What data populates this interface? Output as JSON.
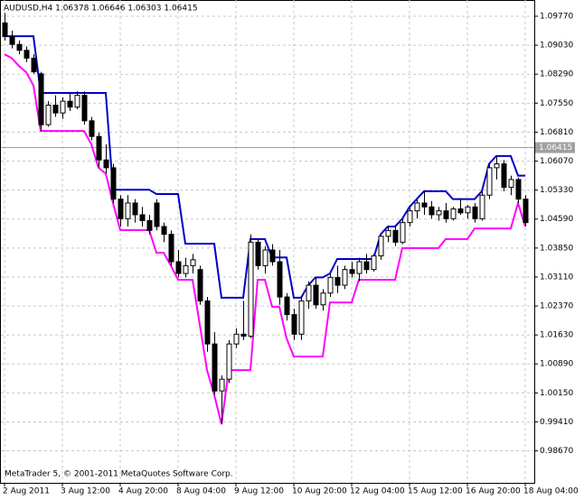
{
  "chart_data": {
    "type": "candlestick",
    "title": "AUDUSD,H4  1.06378 1.06646 1.06303 1.06415",
    "footer": "MetaTrader 5, © 2001-2011 MetaQuotes Software Corp.",
    "categories": [
      "2 Aug 2011",
      null,
      null,
      null,
      null,
      null,
      null,
      null,
      "3 Aug 12:00",
      null,
      null,
      null,
      null,
      null,
      null,
      null,
      "4 Aug 20:00",
      null,
      null,
      null,
      null,
      null,
      null,
      null,
      "8 Aug 04:00",
      null,
      null,
      null,
      null,
      null,
      null,
      null,
      "9 Aug 12:00",
      null,
      null,
      null,
      null,
      null,
      null,
      null,
      "10 Aug 20:00",
      null,
      null,
      null,
      null,
      null,
      null,
      null,
      "12 Aug 04:00",
      null,
      null,
      null,
      null,
      null,
      null,
      null,
      "15 Aug 12:00",
      null,
      null,
      null,
      null,
      null,
      null,
      null,
      "16 Aug 20:00",
      null,
      null,
      null,
      null,
      null,
      null,
      null,
      "18 Aug 04:00"
    ],
    "open": [
      1.096,
      1.0925,
      1.0905,
      1.089,
      1.087,
      1.083,
      1.07,
      1.075,
      1.073,
      1.076,
      1.0745,
      1.0775,
      1.071,
      1.067,
      1.061,
      1.059,
      1.051,
      1.046,
      1.05,
      1.047,
      1.0455,
      1.05,
      1.044,
      1.042,
      1.035,
      1.032,
      1.034,
      1.033,
      1.025,
      1.014,
      1.002,
      1.005,
      1.014,
      1.0165,
      1.016,
      1.04,
      1.034,
      1.038,
      1.035,
      1.026,
      1.0215,
      1.0165,
      1.025,
      1.029,
      1.024,
      1.027,
      1.031,
      1.029,
      1.033,
      1.032,
      1.035,
      1.033,
      1.0365,
      1.0415,
      1.043,
      1.04,
      1.045,
      1.048,
      1.05,
      1.049,
      1.047,
      1.048,
      1.046,
      1.0485,
      1.0475,
      1.049,
      1.046,
      1.052,
      1.059,
      1.06,
      1.054,
      1.056,
      1.051
    ],
    "high": [
      1.0985,
      1.094,
      1.0915,
      1.09,
      1.088,
      1.0835,
      1.076,
      1.0775,
      1.077,
      1.078,
      1.0785,
      1.0785,
      1.072,
      1.068,
      1.065,
      1.06,
      1.052,
      1.052,
      1.051,
      1.049,
      1.047,
      1.051,
      1.045,
      1.043,
      1.038,
      1.036,
      1.037,
      1.034,
      1.026,
      1.017,
      1.006,
      1.015,
      1.018,
      1.025,
      1.042,
      1.041,
      1.039,
      1.0395,
      1.038,
      1.027,
      1.023,
      1.026,
      1.03,
      1.031,
      1.028,
      1.032,
      1.034,
      1.034,
      1.035,
      1.036,
      1.037,
      1.037,
      1.042,
      1.044,
      1.044,
      1.046,
      1.049,
      1.051,
      1.053,
      1.0505,
      1.049,
      1.05,
      1.049,
      1.051,
      1.0495,
      1.05,
      1.053,
      1.06,
      1.062,
      1.061,
      1.057,
      1.0565,
      1.052
    ],
    "low": [
      1.0915,
      1.0895,
      1.088,
      1.086,
      1.083,
      1.0685,
      1.0695,
      1.072,
      1.0715,
      1.0735,
      1.074,
      1.07,
      1.066,
      1.059,
      1.0575,
      1.05,
      1.044,
      1.044,
      1.045,
      1.044,
      1.042,
      1.043,
      1.04,
      1.034,
      1.031,
      1.031,
      1.032,
      1.024,
      1.012,
      1.001,
      0.9935,
      1.004,
      1.013,
      1.015,
      1.0155,
      1.033,
      1.032,
      1.034,
      1.024,
      1.02,
      1.015,
      1.015,
      1.023,
      1.023,
      1.0225,
      1.026,
      1.027,
      1.028,
      1.031,
      1.03,
      1.032,
      1.0325,
      1.0355,
      1.04,
      1.039,
      1.0395,
      1.044,
      1.046,
      1.047,
      1.046,
      1.0455,
      1.045,
      1.0455,
      1.047,
      1.046,
      1.045,
      1.0455,
      1.051,
      1.056,
      1.053,
      1.052,
      1.05,
      1.044
    ],
    "close": [
      1.0925,
      1.0905,
      1.089,
      1.087,
      1.0835,
      1.07,
      1.075,
      1.073,
      1.076,
      1.0745,
      1.0775,
      1.071,
      1.067,
      1.061,
      1.059,
      1.051,
      1.046,
      1.05,
      1.047,
      1.0455,
      1.043,
      1.044,
      1.042,
      1.035,
      1.032,
      1.034,
      1.0355,
      1.025,
      1.014,
      1.002,
      1.005,
      1.014,
      1.0165,
      1.016,
      1.04,
      1.034,
      1.038,
      1.035,
      1.026,
      1.0215,
      1.0165,
      1.025,
      1.029,
      1.024,
      1.027,
      1.031,
      1.029,
      1.033,
      1.032,
      1.035,
      1.033,
      1.0365,
      1.0415,
      1.043,
      1.04,
      1.045,
      1.048,
      1.05,
      1.049,
      1.047,
      1.048,
      1.046,
      1.0485,
      1.0475,
      1.049,
      1.046,
      1.052,
      1.059,
      1.06,
      1.054,
      1.056,
      1.051,
      1.045
    ],
    "series": [
      {
        "color": "#0000c8",
        "values": [
          1.0926,
          1.0926,
          1.0926,
          1.0926,
          1.0926,
          1.0781,
          1.0781,
          1.0781,
          1.0781,
          1.0781,
          1.0781,
          1.0781,
          1.0781,
          1.0781,
          1.0781,
          1.0534,
          1.0534,
          1.0534,
          1.0534,
          1.0534,
          1.0534,
          1.0523,
          1.0523,
          1.0523,
          1.0523,
          1.0396,
          1.0396,
          1.0396,
          1.0396,
          1.0396,
          1.0258,
          1.0258,
          1.0258,
          1.0258,
          1.0408,
          1.0408,
          1.0408,
          1.0361,
          1.0361,
          1.0361,
          1.0258,
          1.0258,
          1.029,
          1.031,
          1.031,
          1.032,
          1.0357,
          1.0357,
          1.0357,
          1.0357,
          1.0357,
          1.0357,
          1.042,
          1.044,
          1.044,
          1.046,
          1.049,
          1.051,
          1.053,
          1.053,
          1.053,
          1.053,
          1.051,
          1.051,
          1.051,
          1.051,
          1.053,
          1.06,
          1.062,
          1.062,
          1.062,
          1.057,
          1.057
        ]
      },
      {
        "color": "#ff00ff",
        "values": [
          1.088,
          1.087,
          1.085,
          1.0834,
          1.08,
          1.0684,
          1.0684,
          1.0684,
          1.0684,
          1.0684,
          1.0684,
          1.0684,
          1.065,
          1.059,
          1.0575,
          1.05,
          1.0431,
          1.0431,
          1.0431,
          1.0431,
          1.0431,
          1.0373,
          1.0373,
          1.034,
          1.0304,
          1.0304,
          1.0304,
          1.0189,
          1.0073,
          1.001,
          0.9935,
          1.0073,
          1.0073,
          1.0073,
          1.0073,
          1.0304,
          1.0304,
          1.0235,
          1.0235,
          1.0154,
          1.0108,
          1.0108,
          1.0108,
          1.0108,
          1.0108,
          1.0246,
          1.0246,
          1.0246,
          1.0246,
          1.0304,
          1.0304,
          1.0304,
          1.0304,
          1.0304,
          1.0304,
          1.0385,
          1.0385,
          1.0385,
          1.0385,
          1.0385,
          1.0385,
          1.0408,
          1.0408,
          1.0408,
          1.0408,
          1.0435,
          1.0435,
          1.0435,
          1.0435,
          1.0435,
          1.0435,
          1.05,
          1.044
        ]
      }
    ],
    "current_price": {
      "value": 1.06415,
      "label": "1.06415"
    },
    "ylim": [
      0.97853,
      1.10185
    ],
    "yticks": [
      {
        "value": 1.0977,
        "label": "1.09770"
      },
      {
        "value": 1.0903,
        "label": "1.09030"
      },
      {
        "value": 1.0829,
        "label": "1.08290"
      },
      {
        "value": 1.0755,
        "label": "1.07550"
      },
      {
        "value": 1.0681,
        "label": "1.06810"
      },
      {
        "value": 1.0607,
        "label": "1.06070"
      },
      {
        "value": 1.0533,
        "label": "1.05330"
      },
      {
        "value": 1.0459,
        "label": "1.04590"
      },
      {
        "value": 1.0385,
        "label": "1.03850"
      },
      {
        "value": 1.0311,
        "label": "1.03110"
      },
      {
        "value": 1.0237,
        "label": "1.02370"
      },
      {
        "value": 1.0163,
        "label": "1.01630"
      },
      {
        "value": 1.0089,
        "label": "1.00890"
      },
      {
        "value": 1.0015,
        "label": "1.00150"
      },
      {
        "value": 0.9941,
        "label": "0.99410"
      },
      {
        "value": 0.9867,
        "label": "0.98670"
      }
    ],
    "grid": true
  }
}
